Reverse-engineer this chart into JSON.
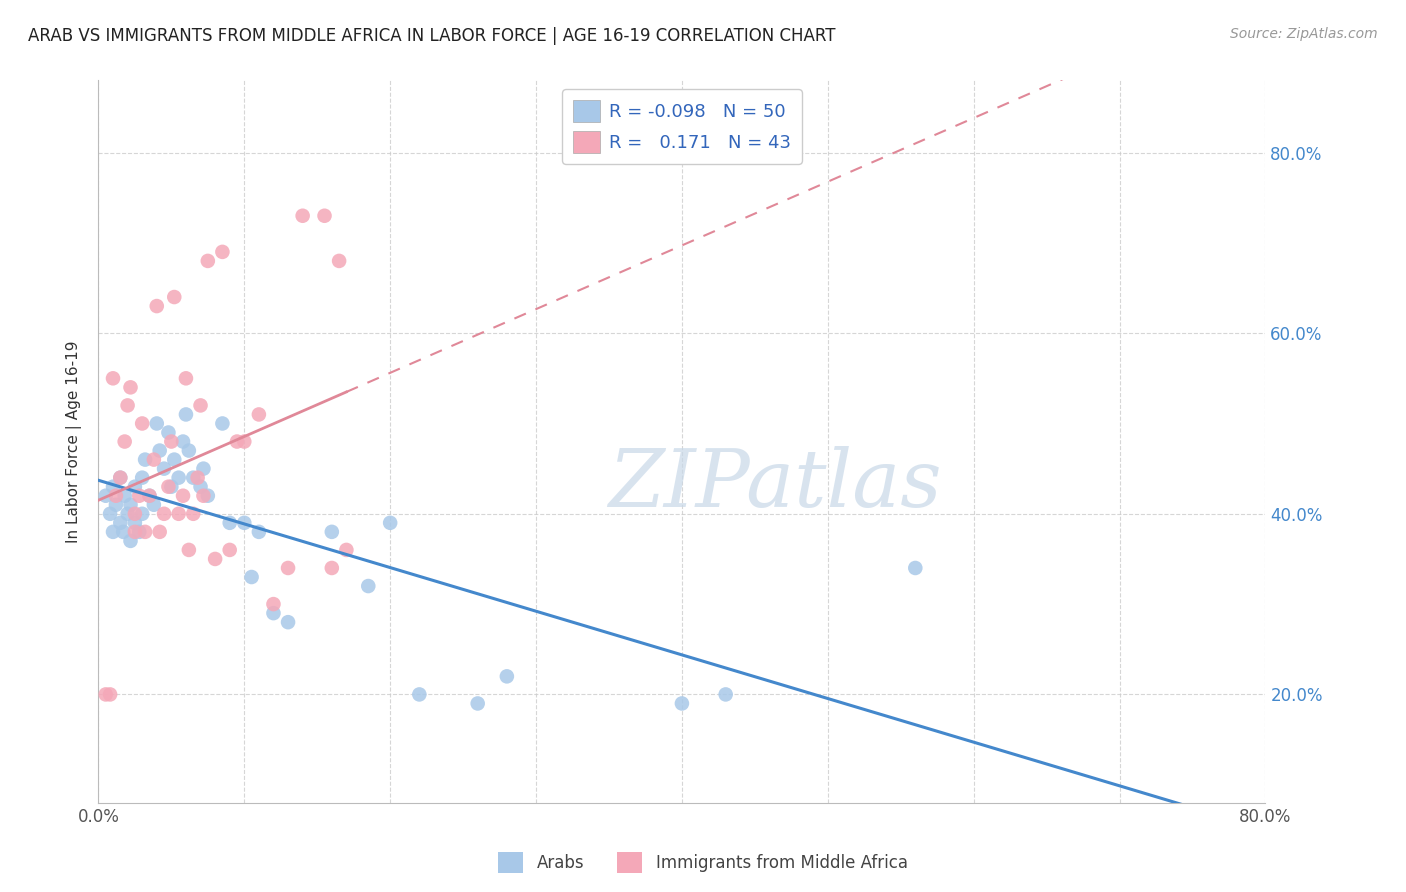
{
  "title": "ARAB VS IMMIGRANTS FROM MIDDLE AFRICA IN LABOR FORCE | AGE 16-19 CORRELATION CHART",
  "source_text": "Source: ZipAtlas.com",
  "ylabel": "In Labor Force | Age 16-19",
  "xlim": [
    0.0,
    0.8
  ],
  "ylim": [
    0.08,
    0.88
  ],
  "xticks": [
    0.0,
    0.1,
    0.2,
    0.3,
    0.4,
    0.5,
    0.6,
    0.7,
    0.8
  ],
  "yticks": [
    0.2,
    0.4,
    0.6,
    0.8
  ],
  "ytick_labels": [
    "20.0%",
    "40.0%",
    "60.0%",
    "80.0%"
  ],
  "R_arab": -0.098,
  "N_arab": 50,
  "R_immig": 0.171,
  "N_immig": 43,
  "arab_color": "#a8c8e8",
  "immig_color": "#f4a8b8",
  "arab_line_color": "#4488cc",
  "immig_line_color": "#e08898",
  "watermark_color": "#c8d8e8",
  "background_color": "#ffffff",
  "grid_color": "#cccccc",
  "arab_x": [
    0.005,
    0.008,
    0.01,
    0.01,
    0.012,
    0.015,
    0.015,
    0.017,
    0.018,
    0.02,
    0.022,
    0.022,
    0.025,
    0.025,
    0.028,
    0.03,
    0.03,
    0.032,
    0.035,
    0.038,
    0.04,
    0.042,
    0.045,
    0.048,
    0.05,
    0.052,
    0.055,
    0.058,
    0.06,
    0.062,
    0.065,
    0.07,
    0.072,
    0.075,
    0.085,
    0.09,
    0.1,
    0.105,
    0.11,
    0.12,
    0.13,
    0.16,
    0.185,
    0.2,
    0.22,
    0.26,
    0.28,
    0.4,
    0.43,
    0.56
  ],
  "arab_y": [
    0.42,
    0.4,
    0.38,
    0.43,
    0.41,
    0.44,
    0.39,
    0.38,
    0.42,
    0.4,
    0.37,
    0.41,
    0.43,
    0.39,
    0.38,
    0.44,
    0.4,
    0.46,
    0.42,
    0.41,
    0.5,
    0.47,
    0.45,
    0.49,
    0.43,
    0.46,
    0.44,
    0.48,
    0.51,
    0.47,
    0.44,
    0.43,
    0.45,
    0.42,
    0.5,
    0.39,
    0.39,
    0.33,
    0.38,
    0.29,
    0.28,
    0.38,
    0.32,
    0.39,
    0.2,
    0.19,
    0.22,
    0.19,
    0.2,
    0.34
  ],
  "immig_x": [
    0.005,
    0.008,
    0.01,
    0.012,
    0.015,
    0.018,
    0.02,
    0.022,
    0.025,
    0.025,
    0.028,
    0.03,
    0.032,
    0.035,
    0.038,
    0.04,
    0.042,
    0.045,
    0.048,
    0.05,
    0.052,
    0.055,
    0.058,
    0.06,
    0.062,
    0.065,
    0.068,
    0.07,
    0.072,
    0.075,
    0.08,
    0.085,
    0.09,
    0.095,
    0.1,
    0.11,
    0.12,
    0.13,
    0.14,
    0.155,
    0.16,
    0.165,
    0.17
  ],
  "immig_y": [
    0.2,
    0.2,
    0.55,
    0.42,
    0.44,
    0.48,
    0.52,
    0.54,
    0.38,
    0.4,
    0.42,
    0.5,
    0.38,
    0.42,
    0.46,
    0.63,
    0.38,
    0.4,
    0.43,
    0.48,
    0.64,
    0.4,
    0.42,
    0.55,
    0.36,
    0.4,
    0.44,
    0.52,
    0.42,
    0.68,
    0.35,
    0.69,
    0.36,
    0.48,
    0.48,
    0.51,
    0.3,
    0.34,
    0.73,
    0.73,
    0.34,
    0.68,
    0.36
  ]
}
